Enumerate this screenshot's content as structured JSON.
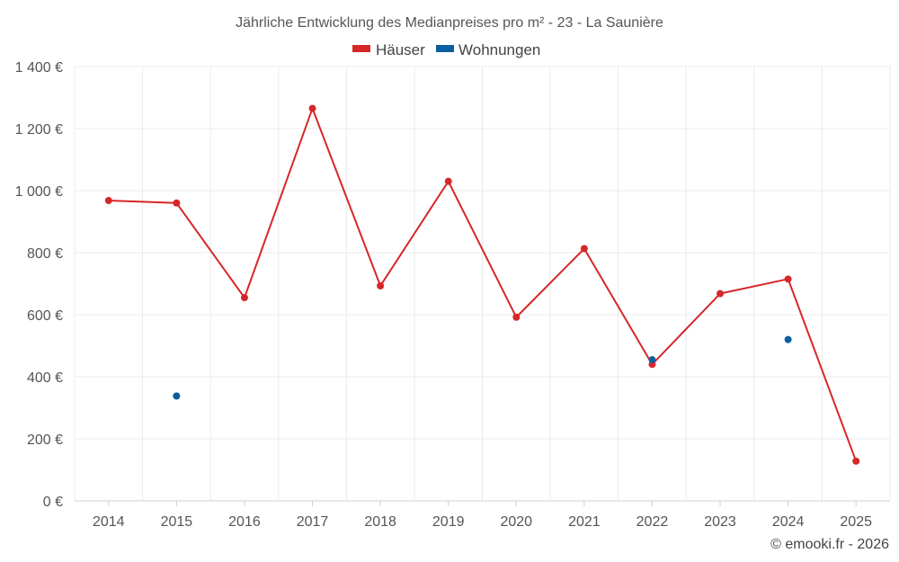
{
  "chart_data": {
    "type": "line",
    "title": "Jährliche Entwicklung des Medianpreises pro m² - 23 - La Saunière",
    "xlabel": "",
    "ylabel": "",
    "categories": [
      "2014",
      "2015",
      "2016",
      "2017",
      "2018",
      "2019",
      "2020",
      "2021",
      "2022",
      "2023",
      "2024",
      "2025"
    ],
    "ylim": [
      0,
      1400
    ],
    "yticks": [
      0,
      200,
      400,
      600,
      800,
      1000,
      1200,
      1400
    ],
    "ytick_labels": [
      "0 €",
      "200 €",
      "400 €",
      "600 €",
      "800 €",
      "1 000 €",
      "1 200 €",
      "1 400 €"
    ],
    "legend_position": "top-center",
    "grid": true,
    "series": [
      {
        "name": "Häuser",
        "color": "#d62728",
        "style": "line-with-markers",
        "values": [
          968,
          960,
          655,
          1265,
          693,
          1030,
          592,
          813,
          440,
          668,
          715,
          128
        ]
      },
      {
        "name": "Wohnungen",
        "color": "#0b5f9e",
        "style": "markers-only",
        "values": [
          null,
          338,
          null,
          null,
          null,
          null,
          null,
          null,
          455,
          null,
          520,
          null
        ]
      }
    ],
    "credit": "© emooki.fr - 2026"
  }
}
